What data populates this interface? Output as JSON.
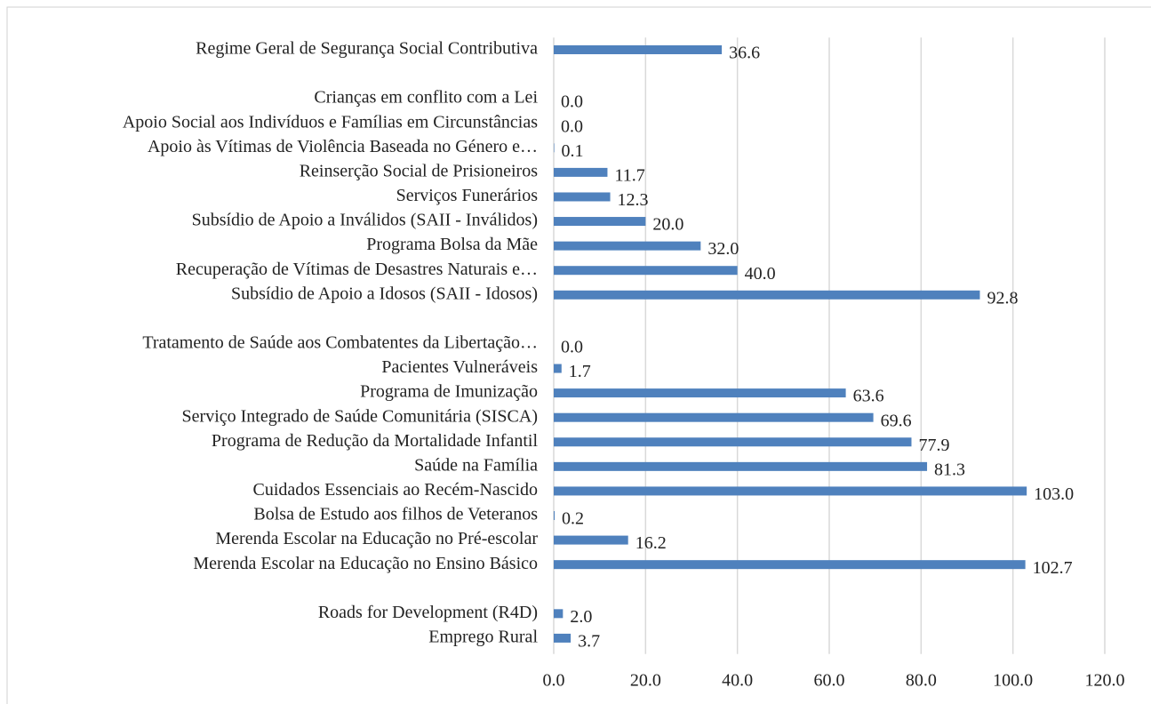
{
  "chart_data": {
    "type": "barh",
    "categories": [
      "Regime Geral de Segurança Social Contributiva",
      null,
      "Crianças em conflito com a Lei",
      "Apoio Social aos Indivíduos e Famílias em Circunstâncias",
      "Apoio às Vítimas de Violência Baseada no Género e…",
      "Reinserção Social de Prisioneiros",
      "Serviços Funerários",
      "Subsídio de Apoio a Inválidos (SAII - Inválidos)",
      "Programa Bolsa da Mãe",
      "Recuperação de Vítimas de Desastres Naturais e…",
      "Subsídio de Apoio a Idosos (SAII - Idosos)",
      null,
      "Tratamento de Saúde aos Combatentes da Libertação…",
      "Pacientes Vulneráveis",
      "Programa de Imunização",
      "Serviço Integrado de Saúde Comunitária (SISCA)",
      "Programa de Redução da Mortalidade Infantil",
      "Saúde na Família",
      "Cuidados Essenciais ao Recém-Nascido",
      "Bolsa de Estudo aos filhos de Veteranos",
      "Merenda Escolar na Educação no Pré-escolar",
      "Merenda Escolar na Educação no Ensino Básico",
      null,
      "Roads for Development (R4D)",
      "Emprego Rural"
    ],
    "values": [
      36.6,
      null,
      0.0,
      0.0,
      0.1,
      11.7,
      12.3,
      20.0,
      32.0,
      40.0,
      92.8,
      null,
      0.0,
      1.7,
      63.6,
      69.6,
      77.9,
      81.3,
      103.0,
      0.2,
      16.2,
      102.7,
      null,
      2.0,
      3.7
    ],
    "value_labels": [
      "36.6",
      null,
      "0.0",
      "0.0",
      "0.1",
      "11.7",
      "12.3",
      "20.0",
      "32.0",
      "40.0",
      "92.8",
      null,
      "0.0",
      "1.7",
      "63.6",
      "69.6",
      "77.9",
      "81.3",
      "103.0",
      "0.2",
      "16.2",
      "102.7",
      null,
      "2.0",
      "3.7"
    ],
    "color": "#4f81bd",
    "xlim": [
      0,
      120
    ],
    "xticks": [
      {
        "value": 0,
        "label": "0.0"
      },
      {
        "value": 20,
        "label": "20.0"
      },
      {
        "value": 40,
        "label": "40.0"
      },
      {
        "value": 60,
        "label": "60.0"
      },
      {
        "value": 80,
        "label": "80.0"
      },
      {
        "value": 100,
        "label": "100.0"
      },
      {
        "value": 120,
        "label": "120.0"
      }
    ],
    "grid": true
  }
}
